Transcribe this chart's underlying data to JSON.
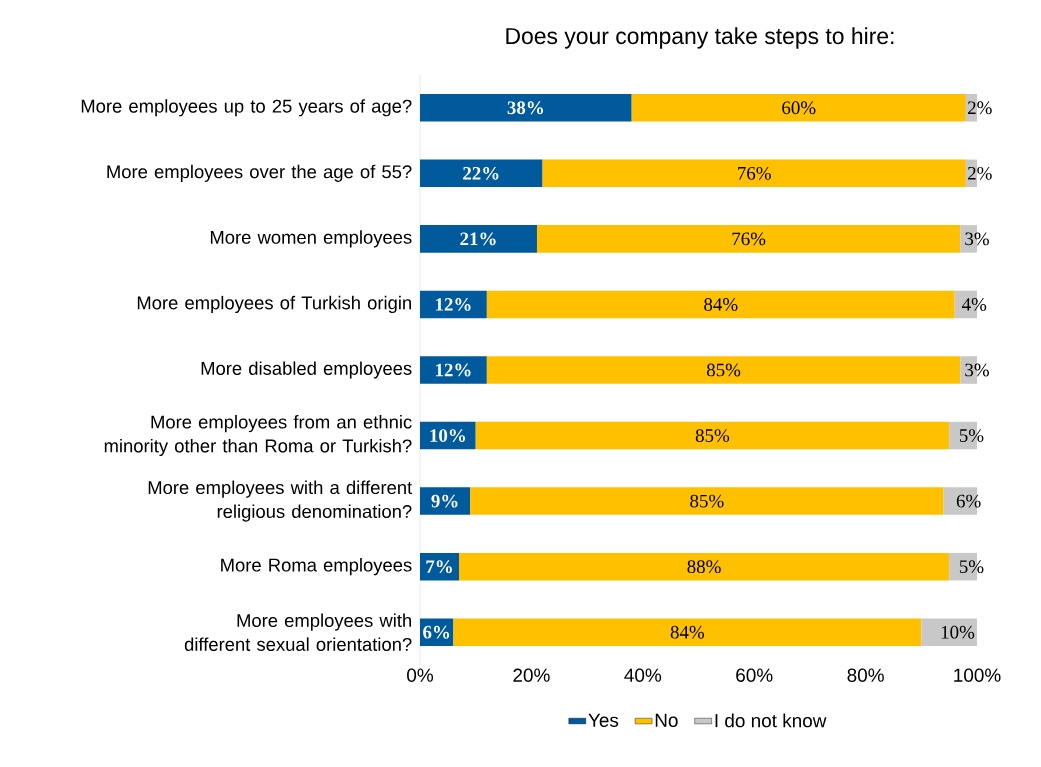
{
  "chart_data": {
    "type": "bar",
    "orientation": "horizontal",
    "stacked": true,
    "title": "Does your company take steps to hire:",
    "categories": [
      "More employees up to 25 years of age?",
      "More employees over the age of 55?",
      "More women employees",
      "More employees of Turkish origin",
      "More disabled employees",
      "More employees from an ethnic minority other than Roma or Turkish?",
      "More employees with a different religious denomination?",
      "More Roma employees",
      "More employees with different sexual orientation?"
    ],
    "series": [
      {
        "name": "Yes",
        "color": "#005a9c",
        "values": [
          38,
          22,
          21,
          12,
          12,
          10,
          9,
          7,
          6
        ],
        "value_labels": [
          "38%",
          "22%",
          "21%",
          "12%",
          "12%",
          "10%",
          "9%",
          "7%",
          "6%"
        ]
      },
      {
        "name": "No",
        "color": "#ffc000",
        "values": [
          60,
          76,
          76,
          84,
          85,
          85,
          85,
          88,
          84
        ],
        "value_labels": [
          "60%",
          "76%",
          "76%",
          "84%",
          "85%",
          "85%",
          "85%",
          "88%",
          "84%"
        ]
      },
      {
        "name": "I do not know",
        "color": "#c8c8c8",
        "values": [
          2,
          2,
          3,
          4,
          3,
          5,
          6,
          5,
          10
        ],
        "value_labels": [
          "2%",
          "2%",
          "3%",
          "4%",
          "3%",
          "5%",
          "6%",
          "5%",
          "10%"
        ]
      }
    ],
    "xlim": [
      0,
      100
    ],
    "xticks": [
      {
        "value": 0,
        "label": "0%"
      },
      {
        "value": 20,
        "label": "20%"
      },
      {
        "value": 40,
        "label": "40%"
      },
      {
        "value": 60,
        "label": "60%"
      },
      {
        "value": 80,
        "label": "80%"
      },
      {
        "value": 100,
        "label": "100%"
      }
    ],
    "grid": false,
    "legend": "bottom"
  }
}
